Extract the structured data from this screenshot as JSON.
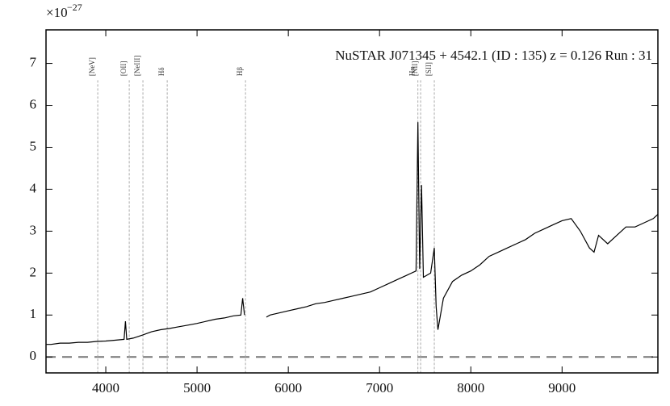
{
  "chart_data": {
    "type": "line",
    "title": "NuSTAR J071345 + 4542.1 (ID : 135)   z = 0.126   Run : 31",
    "y_scale_base": "×10",
    "y_scale_exponent": "−27",
    "xlim": [
      3345,
      10050
    ],
    "ylim": [
      -0.38,
      7.8
    ],
    "xticks": [
      4000,
      5000,
      6000,
      7000,
      8000,
      9000
    ],
    "yticks": [
      0,
      1,
      2,
      3,
      4,
      5,
      6,
      7
    ],
    "hline": 0,
    "lines": [
      {
        "label": "[NeV]",
        "x": 3912
      },
      {
        "label": "[OII]",
        "x": 4257
      },
      {
        "label": "[NeIII]",
        "x": 4407
      },
      {
        "label": "Hδ",
        "x": 4673
      },
      {
        "label": "Hβ",
        "x": 5531
      },
      {
        "label": "Hα",
        "x": 7420
      },
      {
        "label": "[NII]",
        "x": 7450
      },
      {
        "label": "[SII]",
        "x": 7600
      }
    ],
    "series": [
      {
        "color": "#000000",
        "x": [
          3350,
          3400,
          3500,
          3600,
          3700,
          3800,
          3900,
          4000,
          4100,
          4200,
          4215,
          4230,
          4300,
          4400,
          4500,
          4600,
          4700,
          4800,
          4900,
          5000,
          5100,
          5200,
          5300,
          5400,
          5480,
          5500,
          5520,
          5560,
          5760,
          5800,
          5900,
          6000,
          6100,
          6200,
          6300,
          6400,
          6500,
          6600,
          6700,
          6800,
          6900,
          7000,
          7100,
          7200,
          7300,
          7400,
          7420,
          7440,
          7460,
          7480,
          7560,
          7600,
          7620,
          7640,
          7700,
          7800,
          7900,
          8000,
          8100,
          8200,
          8300,
          8400,
          8500,
          8600,
          8700,
          8800,
          8900,
          9000,
          9100,
          9200,
          9300,
          9350,
          9400,
          9500,
          9600,
          9700,
          9800,
          9900,
          10000,
          10050
        ],
        "values": [
          0.3,
          0.3,
          0.33,
          0.33,
          0.35,
          0.35,
          0.37,
          0.38,
          0.4,
          0.42,
          0.85,
          0.42,
          0.45,
          0.52,
          0.6,
          0.65,
          0.68,
          0.72,
          0.76,
          0.8,
          0.85,
          0.9,
          0.93,
          0.98,
          1.0,
          1.4,
          1.0,
          null,
          0.95,
          1.0,
          1.05,
          1.1,
          1.15,
          1.2,
          1.27,
          1.3,
          1.35,
          1.4,
          1.45,
          1.5,
          1.55,
          1.65,
          1.75,
          1.85,
          1.95,
          2.05,
          5.6,
          2.1,
          4.1,
          1.9,
          2.0,
          2.6,
          1.2,
          0.65,
          1.4,
          1.8,
          1.95,
          2.05,
          2.2,
          2.4,
          2.5,
          2.6,
          2.7,
          2.8,
          2.95,
          3.05,
          3.15,
          3.25,
          3.3,
          3.0,
          2.6,
          2.5,
          2.9,
          2.7,
          2.9,
          3.1,
          3.1,
          3.2,
          3.3,
          3.4
        ]
      }
    ]
  }
}
